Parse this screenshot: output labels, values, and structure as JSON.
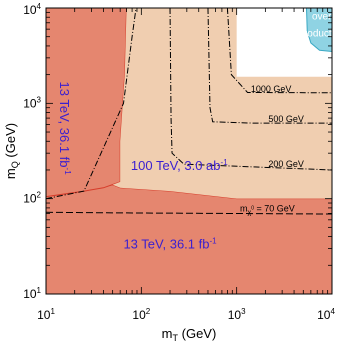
{
  "chart_data": {
    "type": "area",
    "xscale": "log",
    "yscale": "log",
    "xlim": [
      10,
      10000
    ],
    "ylim": [
      10,
      10000
    ],
    "xlabel": "m_T (GeV)",
    "ylabel": "m_Q (GeV)",
    "xlabel_main": "m",
    "xlabel_sub": "T",
    "xlabel_unit": " (GeV)",
    "ylabel_main": "m",
    "ylabel_sub": "Q",
    "ylabel_unit": " (GeV)",
    "x_ticks": [
      {
        "value": 10,
        "base": "10",
        "exp": "1"
      },
      {
        "value": 100,
        "base": "10",
        "exp": "2"
      },
      {
        "value": 1000,
        "base": "10",
        "exp": "3"
      },
      {
        "value": 10000,
        "base": "10",
        "exp": "4"
      }
    ],
    "y_ticks": [
      {
        "value": 10,
        "base": "10",
        "exp": "1"
      },
      {
        "value": 100,
        "base": "10",
        "exp": "2"
      },
      {
        "value": 1000,
        "base": "10",
        "exp": "3"
      },
      {
        "value": 10000,
        "base": "10",
        "exp": "4"
      }
    ],
    "grid": false,
    "colors": {
      "excluded_13tev": "#e5866f",
      "excluded_13tev_edge": "#d63c2a",
      "reach_100tev": "#f0ceb0",
      "overproduction": "#8fd3e3",
      "overproduction_edge": "#3aa9c4",
      "dm_contours": "#000000",
      "label_blue": "#3a1fd1"
    },
    "regions": [
      {
        "name": "13 TeV, 36.1 fb-1 (lower band)",
        "points": [
          [
            10,
            10
          ],
          [
            10000,
            10
          ],
          [
            10000,
            100
          ],
          [
            1000,
            100
          ],
          [
            200,
            120
          ],
          [
            60,
            130
          ],
          [
            50,
            140
          ],
          [
            25,
            120
          ],
          [
            10,
            105
          ]
        ]
      },
      {
        "name": "13 TeV, 36.1 fb-1 (left band)",
        "points": [
          [
            10,
            10000
          ],
          [
            10,
            105
          ],
          [
            25,
            120
          ],
          [
            40,
            130
          ],
          [
            60,
            150
          ],
          [
            60,
            400
          ],
          [
            67,
            2000
          ],
          [
            70,
            10000
          ]
        ]
      },
      {
        "name": "100 TeV, 3.0 ab-1",
        "points": [
          [
            70,
            10000
          ],
          [
            67,
            2000
          ],
          [
            60,
            400
          ],
          [
            60,
            150
          ],
          [
            50,
            140
          ],
          [
            60,
            130
          ],
          [
            200,
            120
          ],
          [
            1000,
            100
          ],
          [
            10000,
            100
          ],
          [
            10000,
            1900
          ],
          [
            1000,
            1900
          ],
          [
            1000,
            10000
          ]
        ]
      },
      {
        "name": "over production",
        "points": [
          [
            5400,
            10000
          ],
          [
            5500,
            5700
          ],
          [
            6000,
            4300
          ],
          [
            7400,
            3600
          ],
          [
            10000,
            3500
          ],
          [
            10000,
            10000
          ]
        ]
      }
    ],
    "curves": [
      {
        "label": "1000 GeV",
        "points": [
          [
            10,
            100
          ],
          [
            25,
            120
          ],
          [
            65,
            1000
          ],
          [
            80,
            5000
          ],
          [
            88,
            10000
          ]
        ]
      },
      {
        "label": "1000 GeV",
        "points": [
          [
            800,
            10000
          ],
          [
            880,
            2000
          ],
          [
            1300,
            1300
          ],
          [
            10000,
            1290
          ]
        ]
      },
      {
        "label": "500 GeV",
        "points": [
          [
            500,
            10000
          ],
          [
            525,
            900
          ],
          [
            560,
            640
          ],
          [
            1500,
            620
          ],
          [
            10000,
            620
          ]
        ]
      },
      {
        "label": "200 GeV",
        "points": [
          [
            200,
            10000
          ],
          [
            205,
            700
          ],
          [
            210,
            300
          ],
          [
            280,
            230
          ],
          [
            10000,
            200
          ]
        ]
      },
      {
        "label": "m_χ = 70 GeV",
        "points": [
          [
            10,
            72
          ],
          [
            50,
            71
          ],
          [
            700,
            70
          ],
          [
            10000,
            69
          ]
        ]
      }
    ],
    "annotations": [
      {
        "key": "left13",
        "main": "13 TeV, 36.1 fb",
        "sup": "-1",
        "x": 14,
        "y": 550,
        "rotate": 90,
        "color": "#3a1fd1"
      },
      {
        "key": "bottom13",
        "main": "13 TeV, 36.1 fb",
        "sup": "-1",
        "x": 200,
        "y": 30,
        "rotate": 0,
        "color": "#3a1fd1"
      },
      {
        "key": "reach100",
        "main": "100 TeV, 3.0 ab",
        "sup": "-1",
        "x": 250,
        "y": 200,
        "rotate": 0,
        "color": "#3a1fd1"
      },
      {
        "key": "over1",
        "text": "over",
        "x": 7800,
        "y": 7600,
        "rotate": 0,
        "color": "#ffffff"
      },
      {
        "key": "over2",
        "text": "production",
        "x": 7800,
        "y": 5000,
        "rotate": 0,
        "color": "#ffffff"
      },
      {
        "key": "c1000",
        "text": "1000 GeV",
        "x": 2300,
        "y": 1320,
        "rotate": 0,
        "color": "#000000"
      },
      {
        "key": "c500",
        "text": "500 GeV",
        "x": 3300,
        "y": 640,
        "rotate": 0,
        "color": "#000000"
      },
      {
        "key": "c200",
        "text": "200 GeV",
        "x": 3300,
        "y": 215,
        "rotate": 0,
        "color": "#000000"
      },
      {
        "key": "c70",
        "main": "m",
        "sub": "χ",
        "sub2": "0",
        "tail": " = 70 GeV",
        "x": 2100,
        "y": 73,
        "rotate": 0,
        "color": "#000000"
      }
    ]
  }
}
